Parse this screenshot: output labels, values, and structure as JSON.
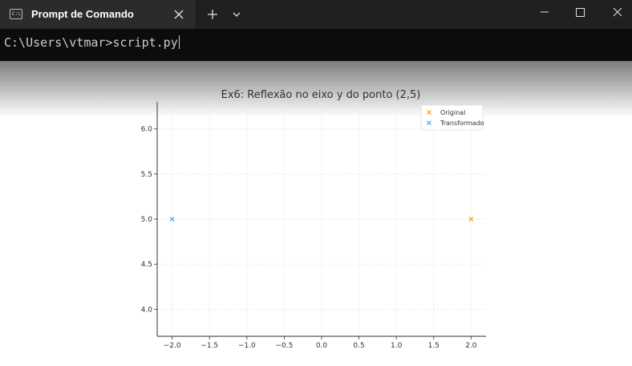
{
  "window": {
    "tab_title": "Prompt de Comando",
    "tab_icon": "terminal-icon",
    "close_tab_icon": "close-icon",
    "new_tab_icon": "plus-icon",
    "dropdown_icon": "chevron-down-icon",
    "controls": [
      "minimize-icon",
      "maximize-icon",
      "close-icon"
    ]
  },
  "terminal": {
    "prompt": "C:\\Users\\vtmar>",
    "command": "script.py"
  },
  "chart_data": {
    "type": "scatter",
    "title": "Ex6: Reflexão no eixo y do ponto (2,5)",
    "xlabel": "",
    "ylabel": "",
    "xlim": [
      -2.2,
      2.2
    ],
    "ylim": [
      3.7,
      6.3
    ],
    "grid": true,
    "x_ticks": [
      "−2.0",
      "−1.5",
      "−1.0",
      "−0.5",
      "0.0",
      "0.5",
      "1.0",
      "1.5",
      "2.0"
    ],
    "y_ticks": [
      "4.0",
      "4.5",
      "5.0",
      "5.5",
      "6.0"
    ],
    "legend_position": "top-right",
    "series": [
      {
        "name": "Original",
        "marker": "x",
        "color": "#ff9900",
        "x": [
          2
        ],
        "y": [
          5
        ]
      },
      {
        "name": "Transformado",
        "marker": "x",
        "color": "#33aadd",
        "x": [
          -2
        ],
        "y": [
          5
        ]
      }
    ]
  }
}
